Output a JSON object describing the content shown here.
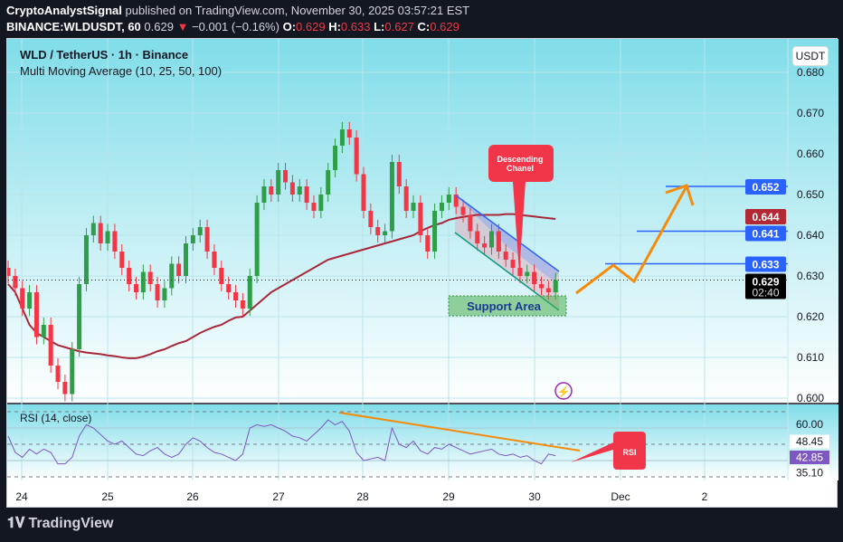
{
  "header": {
    "author": "CryptoAnalystSignal",
    "published": "published on TradingView.com, November 30, 2025 03:57:21 EST",
    "symbol": "BINANCE:WLDUSDT, 60",
    "last": "0.629",
    "change": "−0.001 (−0.16%)",
    "o_label": "O:",
    "o": "0.629",
    "h_label": "H:",
    "h": "0.633",
    "l_label": "L:",
    "l": "0.627",
    "c_label": "C:",
    "c": "0.629"
  },
  "legend": {
    "title": "WLD / TetherUS · 1h · Binance",
    "indicator": "Multi Moving Average (10, 25, 50, 100)",
    "rsi": "RSI (14, close)"
  },
  "currency": "USDT",
  "footer": {
    "brand": "TradingView"
  },
  "colors": {
    "up": "#2e9e48",
    "down": "#f23645",
    "ma": "#a8283a",
    "rsi": "#7e57c2",
    "level": "#2962ff",
    "arrow": "#f58b0a",
    "callout": "#f2364a"
  },
  "chart_data": {
    "type": "candlestick",
    "interval": "2h",
    "start": "2025-11-23 20:00",
    "ylim": [
      0.6,
      0.68
    ],
    "yticks": [
      "0.680",
      "0.670",
      "0.660",
      "0.650",
      "0.640",
      "0.630",
      "0.620",
      "0.610",
      "0.600"
    ],
    "xticks": [
      "24",
      "25",
      "26",
      "27",
      "28",
      "29",
      "30",
      "Dec",
      "2"
    ],
    "close": [
      0.63,
      0.627,
      0.622,
      0.626,
      0.615,
      0.618,
      0.608,
      0.604,
      0.601,
      0.612,
      0.628,
      0.64,
      0.643,
      0.638,
      0.641,
      0.636,
      0.632,
      0.628,
      0.626,
      0.631,
      0.628,
      0.624,
      0.627,
      0.633,
      0.63,
      0.638,
      0.64,
      0.642,
      0.636,
      0.632,
      0.628,
      0.626,
      0.624,
      0.622,
      0.63,
      0.648,
      0.652,
      0.65,
      0.656,
      0.653,
      0.65,
      0.652,
      0.648,
      0.646,
      0.65,
      0.656,
      0.662,
      0.666,
      0.664,
      0.655,
      0.646,
      0.642,
      0.64,
      0.641,
      0.658,
      0.652,
      0.646,
      0.648,
      0.64,
      0.636,
      0.646,
      0.648,
      0.65,
      0.647,
      0.645,
      0.641,
      0.638,
      0.637,
      0.641,
      0.636,
      0.634,
      0.632,
      0.63,
      0.631,
      0.628,
      0.627,
      0.626,
      0.629
    ],
    "ma100": [
      0.628,
      0.626,
      0.622,
      0.618,
      0.616,
      0.615,
      0.614,
      0.613,
      0.6125,
      0.612,
      0.6115,
      0.6112,
      0.611,
      0.6108,
      0.6105,
      0.6103,
      0.61,
      0.6098,
      0.6098,
      0.6102,
      0.6108,
      0.6115,
      0.612,
      0.6128,
      0.6135,
      0.614,
      0.615,
      0.616,
      0.6168,
      0.6175,
      0.618,
      0.619,
      0.6198,
      0.62,
      0.6215,
      0.623,
      0.6245,
      0.626,
      0.627,
      0.628,
      0.629,
      0.63,
      0.631,
      0.632,
      0.633,
      0.634,
      0.6345,
      0.635,
      0.6355,
      0.636,
      0.6365,
      0.637,
      0.6375,
      0.638,
      0.6385,
      0.639,
      0.6395,
      0.64,
      0.641,
      0.6418,
      0.6425,
      0.643,
      0.6438,
      0.6442,
      0.6445,
      0.6448,
      0.645,
      0.645,
      0.645,
      0.645,
      0.6452,
      0.6452,
      0.645,
      0.6448,
      0.6446,
      0.6444,
      0.6442,
      0.644
    ],
    "price_labels": [
      {
        "value": "0.652",
        "color": "#2962ff"
      },
      {
        "value": "0.644",
        "color": "#b22833"
      },
      {
        "value": "0.641",
        "color": "#2962ff"
      },
      {
        "value": "0.633",
        "color": "#2962ff"
      },
      {
        "value": "0.629",
        "sub": "02:40",
        "color": "#000000"
      }
    ],
    "levels": [
      0.652,
      0.641,
      0.633
    ],
    "annotations": {
      "channel": "Descending\nChanel",
      "support": "Support Area",
      "rsi_callout": "RSI"
    },
    "rsi": {
      "ylim": [
        30,
        70
      ],
      "levels": [
        70,
        50,
        30
      ],
      "ticks": [
        "60.00",
        "48.45",
        "42.85",
        "35.10"
      ],
      "values": [
        55,
        45,
        42,
        47,
        44,
        47,
        45,
        38,
        38,
        42,
        55,
        62,
        60,
        56,
        52,
        50,
        52,
        48,
        44,
        43,
        46,
        48,
        44,
        42,
        44,
        50,
        54,
        52,
        48,
        45,
        44,
        42,
        40,
        44,
        60,
        62,
        61,
        62,
        60,
        58,
        55,
        54,
        52,
        56,
        60,
        65,
        62,
        64,
        58,
        45,
        40,
        41,
        42,
        40,
        60,
        50,
        48,
        52,
        46,
        44,
        48,
        47,
        50,
        48,
        46,
        44,
        45,
        46,
        47,
        44,
        43,
        44,
        42,
        43,
        40,
        38,
        44,
        43
      ]
    }
  }
}
